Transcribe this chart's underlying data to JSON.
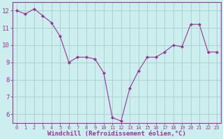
{
  "x": [
    0,
    1,
    2,
    3,
    4,
    5,
    6,
    7,
    8,
    9,
    10,
    11,
    12,
    13,
    14,
    15,
    16,
    17,
    18,
    19,
    20,
    21,
    22,
    23
  ],
  "y": [
    12.0,
    11.8,
    12.1,
    11.7,
    11.3,
    10.5,
    9.0,
    9.3,
    9.3,
    9.2,
    8.4,
    5.8,
    5.6,
    7.5,
    8.5,
    9.3,
    9.3,
    9.6,
    10.0,
    9.9,
    11.2,
    11.2,
    9.6,
    9.6
  ],
  "line_color": "#993399",
  "marker": "D",
  "marker_size": 2.0,
  "bg_color": "#cceeee",
  "grid_color": "#aacccc",
  "xlabel": "Windchill (Refroidissement éolien,°C)",
  "xlabel_fontsize": 6.5,
  "tick_color": "#993399",
  "ytick_fontsize": 6.5,
  "xtick_fontsize": 5.0,
  "ylim": [
    5.5,
    12.5
  ],
  "xlim": [
    -0.5,
    23.5
  ],
  "yticks": [
    6,
    7,
    8,
    9,
    10,
    11,
    12
  ],
  "xticks": [
    0,
    1,
    2,
    3,
    4,
    5,
    6,
    7,
    8,
    9,
    10,
    11,
    12,
    13,
    14,
    15,
    16,
    17,
    18,
    19,
    20,
    21,
    22,
    23
  ]
}
